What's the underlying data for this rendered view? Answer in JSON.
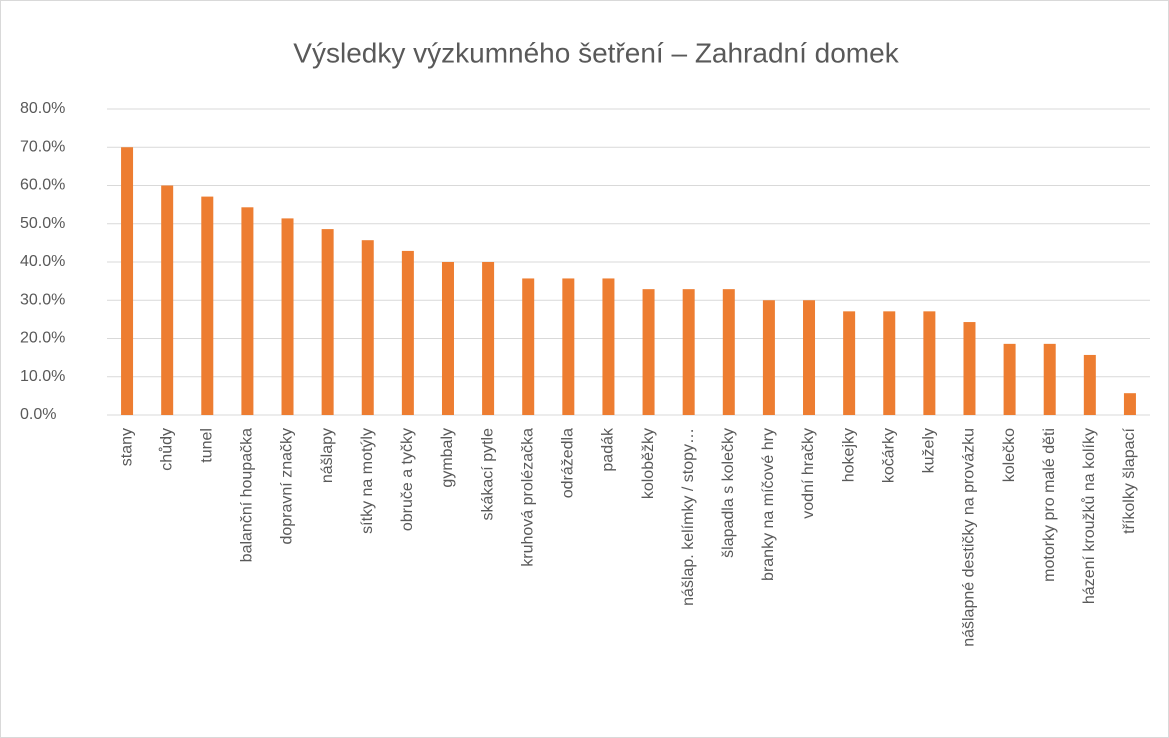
{
  "chart_data": {
    "type": "bar",
    "title": "Výsledky výzkumného šetření – Zahradní domek",
    "categories": [
      "stany",
      "chůdy",
      "tunel",
      "balanční houpačka",
      "dopravní značky",
      "nášlapy",
      "sítky na motýly",
      "obruče a tyčky",
      "gymbaly",
      "skákací pytle",
      "kruhová prolézačka",
      "odrážedla",
      "padák",
      "koloběžky",
      "nášlap. kelímky / stopy…",
      "šlapadla s kolečky",
      "branky na míčové hry",
      "vodní hračky",
      "hokejky",
      "kočárky",
      "kužely",
      "nášlapné destičky na provázku",
      "kolečko",
      "motorky pro malé děti",
      "házení kroužků na kolíky",
      "tříkolky šlapací"
    ],
    "values": [
      70,
      60,
      57.1,
      54.3,
      51.4,
      48.6,
      45.7,
      42.9,
      40,
      40,
      35.7,
      35.7,
      35.7,
      32.9,
      32.9,
      32.9,
      30,
      30,
      27.1,
      27.1,
      27.1,
      24.3,
      18.6,
      18.6,
      15.7,
      5.7
    ],
    "color": "#ed7d31",
    "ylim": [
      0,
      80
    ],
    "yticks": [
      {
        "value": 0,
        "label": "0.0%"
      },
      {
        "value": 10,
        "label": "10.0%"
      },
      {
        "value": 20,
        "label": "20.0%"
      },
      {
        "value": 30,
        "label": "30.0%"
      },
      {
        "value": 40,
        "label": "40.0%"
      },
      {
        "value": 50,
        "label": "50.0%"
      },
      {
        "value": 60,
        "label": "60.0%"
      },
      {
        "value": 70,
        "label": "70.0%"
      },
      {
        "value": 80,
        "label": "80.0%"
      }
    ],
    "grid": true
  }
}
